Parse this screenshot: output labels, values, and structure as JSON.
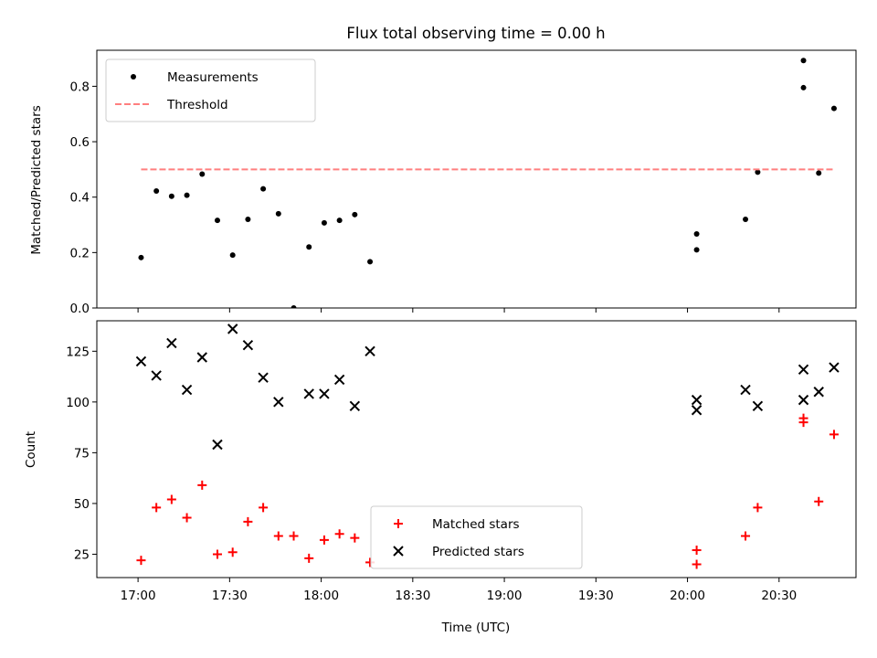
{
  "chart_data": [
    {
      "type": "scatter",
      "title": "Flux total observing time = 0.00 h",
      "ylabel": "Matched/Predicted stars",
      "xlim_minutes_from_1700": [
        -13.5,
        235.2
      ],
      "ylim": [
        0,
        0.93
      ],
      "yticks": [
        0.0,
        0.2,
        0.4,
        0.6,
        0.8
      ],
      "ytick_labels": [
        "0.0",
        "0.2",
        "0.4",
        "0.6",
        "0.8"
      ],
      "series": [
        {
          "name": "Measurements",
          "marker": "dot",
          "color": "#000000",
          "points": [
            [
              "17:01",
              0.182
            ],
            [
              "17:06",
              0.422
            ],
            [
              "17:11",
              0.403
            ],
            [
              "17:16",
              0.407
            ],
            [
              "17:21",
              0.483
            ],
            [
              "17:26",
              0.316
            ],
            [
              "17:31",
              0.191
            ],
            [
              "17:36",
              0.32
            ],
            [
              "17:41",
              0.43
            ],
            [
              "17:46",
              0.34
            ],
            [
              "17:51",
              0.0
            ],
            [
              "17:56",
              0.22
            ],
            [
              "18:01",
              0.307
            ],
            [
              "18:06",
              0.316
            ],
            [
              "18:11",
              0.337
            ],
            [
              "18:16",
              0.167
            ],
            [
              "20:03",
              0.267
            ],
            [
              "20:03",
              0.21
            ],
            [
              "20:19",
              0.32
            ],
            [
              "20:23",
              0.49
            ],
            [
              "20:38",
              0.893
            ],
            [
              "20:38",
              0.795
            ],
            [
              "20:43",
              0.487
            ],
            [
              "20:48",
              0.72
            ]
          ]
        },
        {
          "name": "Threshold",
          "style": "dashed",
          "color": "#ff7f7f",
          "points": [
            [
              "17:01",
              0.5
            ],
            [
              "20:48",
              0.5
            ]
          ]
        }
      ],
      "legend": "upper left"
    },
    {
      "type": "scatter",
      "xlabel": "Time (UTC)",
      "ylabel": "Count",
      "xlim_minutes_from_1700": [
        -13.5,
        235.2
      ],
      "ylim": [
        13.5,
        140
      ],
      "yticks": [
        25,
        50,
        75,
        100,
        125
      ],
      "ytick_labels": [
        "25",
        "50",
        "75",
        "100",
        "125"
      ],
      "xticks": [
        "17:00",
        "17:30",
        "18:00",
        "18:30",
        "19:00",
        "19:30",
        "20:00",
        "20:30"
      ],
      "series": [
        {
          "name": "Matched stars",
          "marker": "plus",
          "color": "#ff0000",
          "points": [
            [
              "17:01",
              22
            ],
            [
              "17:06",
              48
            ],
            [
              "17:11",
              52
            ],
            [
              "17:16",
              43
            ],
            [
              "17:21",
              59
            ],
            [
              "17:26",
              25
            ],
            [
              "17:31",
              26
            ],
            [
              "17:36",
              41
            ],
            [
              "17:41",
              48
            ],
            [
              "17:46",
              34
            ],
            [
              "17:51",
              34
            ],
            [
              "17:56",
              23
            ],
            [
              "18:01",
              32
            ],
            [
              "18:06",
              35
            ],
            [
              "18:11",
              33
            ],
            [
              "18:16",
              21
            ],
            [
              "20:03",
              27
            ],
            [
              "20:03",
              20
            ],
            [
              "20:19",
              34
            ],
            [
              "20:23",
              48
            ],
            [
              "20:38",
              92
            ],
            [
              "20:38",
              90
            ],
            [
              "20:43",
              51
            ],
            [
              "20:48",
              84
            ]
          ]
        },
        {
          "name": "Predicted stars",
          "marker": "x",
          "color": "#000000",
          "points": [
            [
              "17:01",
              120
            ],
            [
              "17:06",
              113
            ],
            [
              "17:11",
              129
            ],
            [
              "17:16",
              106
            ],
            [
              "17:21",
              122
            ],
            [
              "17:26",
              79
            ],
            [
              "17:31",
              136
            ],
            [
              "17:36",
              128
            ],
            [
              "17:41",
              112
            ],
            [
              "17:46",
              100
            ],
            [
              "17:56",
              104
            ],
            [
              "18:01",
              104
            ],
            [
              "18:06",
              111
            ],
            [
              "18:11",
              98
            ],
            [
              "18:16",
              125
            ],
            [
              "20:03",
              101
            ],
            [
              "20:03",
              96
            ],
            [
              "20:19",
              106
            ],
            [
              "20:23",
              98
            ],
            [
              "20:38",
              116
            ],
            [
              "20:38",
              101
            ],
            [
              "20:43",
              105
            ],
            [
              "20:48",
              117
            ]
          ]
        }
      ],
      "legend": "lower center"
    }
  ]
}
